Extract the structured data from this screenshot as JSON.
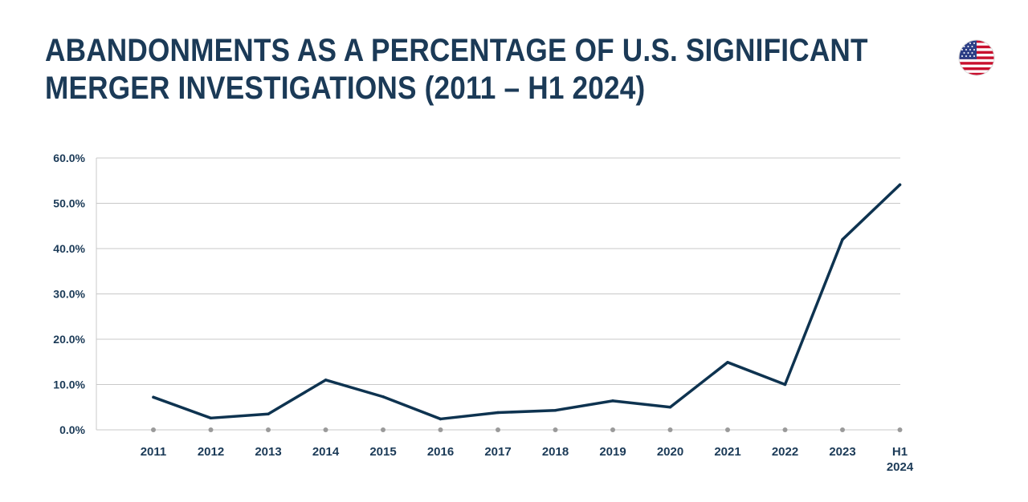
{
  "page": {
    "title_line1": "ABANDONMENTS AS A PERCENTAGE OF U.S. SIGNIFICANT",
    "title_line2": "MERGER INVESTIGATIONS (2011 – H1 2024)",
    "flag_icon": "us-flag-icon"
  },
  "colors": {
    "title": "#1b3a57",
    "line": "#0e3350",
    "grid": "#c8c8c8",
    "tick_dot": "#9a9a9a"
  },
  "chart_data": {
    "type": "line",
    "title": "ABANDONMENTS AS A PERCENTAGE OF U.S. SIGNIFICANT MERGER INVESTIGATIONS (2011 – H1 2024)",
    "xlabel": "",
    "ylabel": "",
    "categories": [
      "2011",
      "2012",
      "2013",
      "2014",
      "2015",
      "2016",
      "2017",
      "2018",
      "2019",
      "2020",
      "2021",
      "2022",
      "2023",
      "H1 2024"
    ],
    "category_lines": [
      [
        "2011"
      ],
      [
        "2012"
      ],
      [
        "2013"
      ],
      [
        "2014"
      ],
      [
        "2015"
      ],
      [
        "2016"
      ],
      [
        "2017"
      ],
      [
        "2018"
      ],
      [
        "2019"
      ],
      [
        "2020"
      ],
      [
        "2021"
      ],
      [
        "2022"
      ],
      [
        "2023"
      ],
      [
        "H1",
        "2024"
      ]
    ],
    "series": [
      {
        "values": [
          7.2,
          2.6,
          3.5,
          11.0,
          7.3,
          2.4,
          3.8,
          4.3,
          6.4,
          5.0,
          14.9,
          10.0,
          42.0,
          54.1
        ]
      }
    ],
    "y_ticks": [
      0,
      10,
      20,
      30,
      40,
      50,
      60
    ],
    "y_tick_labels": [
      "0.0%",
      "10.0%",
      "20.0%",
      "30.0%",
      "40.0%",
      "50.0%",
      "60.0%"
    ],
    "ylim": [
      0,
      60
    ],
    "grid": true,
    "legend": "none"
  }
}
